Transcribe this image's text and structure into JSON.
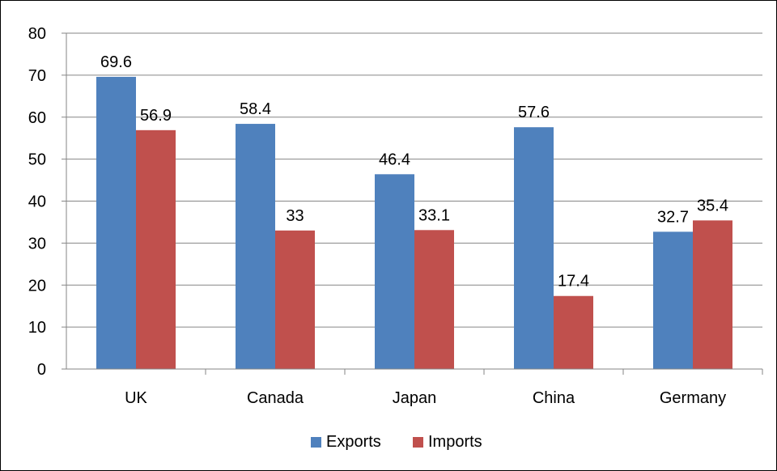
{
  "chart_data": {
    "type": "bar",
    "categories": [
      "UK",
      "Canada",
      "Japan",
      "China",
      "Germany"
    ],
    "series": [
      {
        "name": "Exports",
        "color": "#4F81BD",
        "values": [
          69.6,
          58.4,
          46.4,
          57.6,
          32.7
        ],
        "labels": [
          "69.6",
          "58.4",
          "46.4",
          "57.6",
          "32.7"
        ]
      },
      {
        "name": "Imports",
        "color": "#C0504D",
        "values": [
          56.9,
          33,
          33.1,
          17.4,
          35.4
        ],
        "labels": [
          "56.9",
          "33",
          "33.1",
          "17.4",
          "35.4"
        ]
      }
    ],
    "ylim": [
      0,
      80
    ],
    "yticks": [
      "0",
      "10",
      "20",
      "30",
      "40",
      "50",
      "60",
      "70",
      "80"
    ],
    "grid": true,
    "legend_position": "bottom",
    "gridline_color": "#868686",
    "axis_color": "#868686"
  }
}
